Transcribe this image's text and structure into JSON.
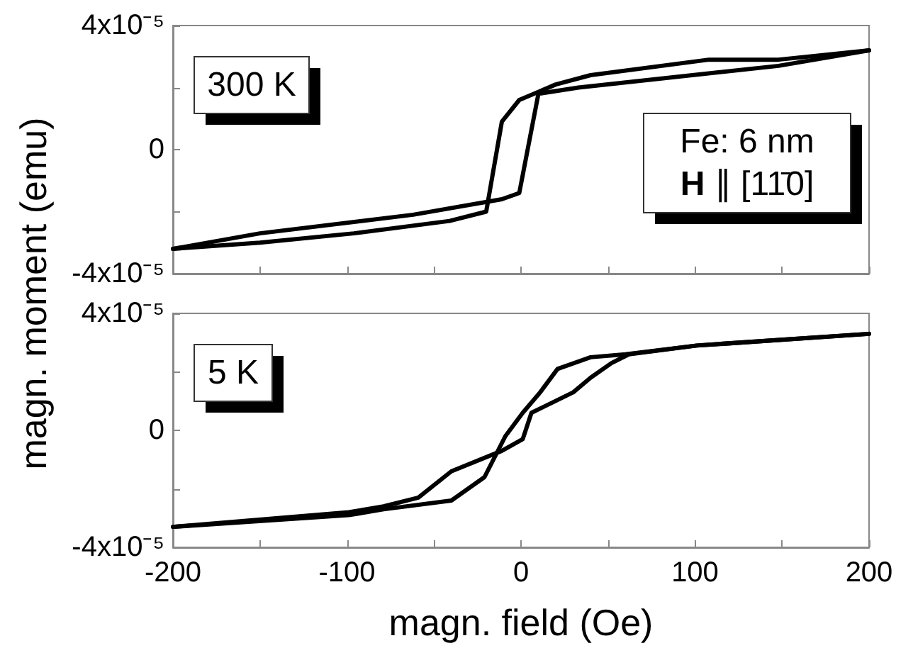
{
  "chart_data": [
    {
      "type": "line",
      "ylabel": "magn. moment (emu)",
      "line_style": "solid",
      "marker": "none",
      "tick_labels": "y",
      "xlim": [
        -200,
        200
      ],
      "xticks": [
        {
          "value": -200,
          "label": null
        },
        {
          "value": -150,
          "label": null
        },
        {
          "value": -100,
          "label": null
        },
        {
          "value": -50,
          "label": null
        },
        {
          "value": 0,
          "label": null
        },
        {
          "value": 50,
          "label": null
        },
        {
          "value": 100,
          "label": null
        },
        {
          "value": 150,
          "label": null
        },
        {
          "value": 200,
          "label": null
        }
      ],
      "ylim": [
        -4e-05,
        4e-05
      ],
      "yticks": [
        {
          "value": -4e-05,
          "label": "-4x10⁻⁵"
        },
        {
          "value": -2e-05,
          "label": null
        },
        0,
        {
          "value": 2e-05,
          "label": null
        },
        {
          "value": 4e-05,
          "label": "4x10⁻⁵"
        }
      ],
      "annotations": [
        "300 K",
        "Fe: 6 nm",
        "H ∥ [11̄0]"
      ],
      "series": [
        {
          "color": "#000000",
          "x": [
            -200,
            -150,
            -96,
            -41,
            -20,
            -11,
            -1,
            20,
            40,
            108,
            148,
            200
          ],
          "values": [
            -3.2e-05,
            -3e-05,
            -2.7e-05,
            -2.3e-05,
            -2e-05,
            9e-06,
            1.6e-05,
            2.1e-05,
            2.4e-05,
            2.9e-05,
            2.9e-05,
            3.2e-05
          ]
        },
        {
          "color": "#000000",
          "x": [
            -200,
            -150,
            -62,
            -11,
            -1,
            10,
            33,
            148,
            200
          ],
          "values": [
            -3.2e-05,
            -2.7e-05,
            -2.1e-05,
            -1.6e-05,
            -1.4e-05,
            1.8e-05,
            2e-05,
            2.7e-05,
            3.2e-05
          ]
        }
      ]
    },
    {
      "type": "line",
      "xlabel": "magn. field (Oe)",
      "line_style": "solid",
      "marker": "none",
      "xlim": [
        -200,
        200
      ],
      "xticks": [
        -200,
        {
          "value": -150,
          "label": null
        },
        -100,
        {
          "value": -50,
          "label": null
        },
        0,
        {
          "value": 50,
          "label": null
        },
        100,
        {
          "value": 150,
          "label": null
        },
        200
      ],
      "ylim": [
        -4e-05,
        4e-05
      ],
      "yticks": [
        {
          "value": -4e-05,
          "label": "-4x10⁻⁵"
        },
        {
          "value": -2e-05,
          "label": null
        },
        0,
        {
          "value": 2e-05,
          "label": null
        },
        {
          "value": 4e-05,
          "label": "4x10⁻⁵"
        }
      ],
      "annotations": [
        "5 K"
      ],
      "series": [
        {
          "color": "#000000",
          "x": [
            -200,
            -99,
            -79,
            -40,
            -21,
            -9,
            1,
            11,
            21,
            40,
            60,
            101,
            200
          ],
          "values": [
            -3.3e-05,
            -2.9e-05,
            -2.7e-05,
            -2.4e-05,
            -1.6e-05,
            -2e-06,
            6e-06,
            1.3e-05,
            2.1e-05,
            2.5e-05,
            2.6e-05,
            2.9e-05,
            3.3e-05
          ]
        },
        {
          "color": "#000000",
          "x": [
            -200,
            -99,
            -79,
            -59,
            -40,
            -11,
            1,
            6,
            30,
            40,
            52,
            62,
            101,
            200
          ],
          "values": [
            -3.3e-05,
            -2.8e-05,
            -2.6e-05,
            -2.3e-05,
            -1.4e-05,
            -7e-06,
            -3e-06,
            6e-06,
            1.3e-05,
            1.8e-05,
            2.3e-05,
            2.6e-05,
            2.9e-05,
            3.3e-05
          ]
        }
      ]
    }
  ]
}
